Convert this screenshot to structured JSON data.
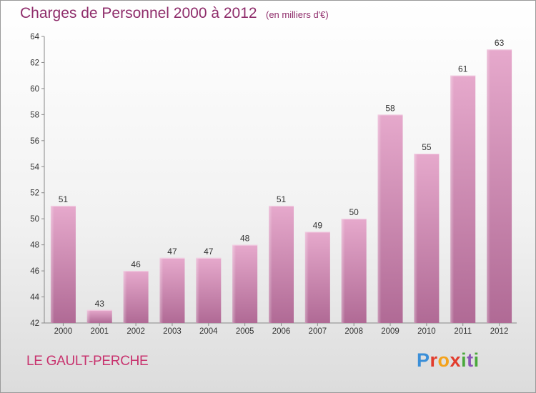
{
  "title": "Charges de Personnel 2000 à 2012",
  "subtitle": "(en milliers d'€)",
  "place": "LE GAULT-PERCHE",
  "logo": {
    "letters": [
      "P",
      "r",
      "o",
      "x",
      "i",
      "t",
      "i"
    ]
  },
  "colors": {
    "title": "#8f2d6b",
    "place": "#c8336e",
    "bar_light": "#e6a9cc",
    "bar_dark": "#b36b97"
  },
  "chart_data": {
    "type": "bar",
    "title": "Charges de Personnel 2000 à 2012",
    "subtitle": "(en milliers d'€)",
    "categories": [
      "2000",
      "2001",
      "2002",
      "2003",
      "2004",
      "2005",
      "2006",
      "2007",
      "2008",
      "2009",
      "2010",
      "2011",
      "2012"
    ],
    "values": [
      51,
      43,
      46,
      47,
      47,
      48,
      51,
      49,
      50,
      58,
      55,
      61,
      63
    ],
    "ylim": [
      42,
      64
    ],
    "yticks": [
      42,
      44,
      46,
      48,
      50,
      52,
      54,
      56,
      58,
      60,
      62,
      64
    ],
    "grid": false,
    "legend": "none"
  }
}
